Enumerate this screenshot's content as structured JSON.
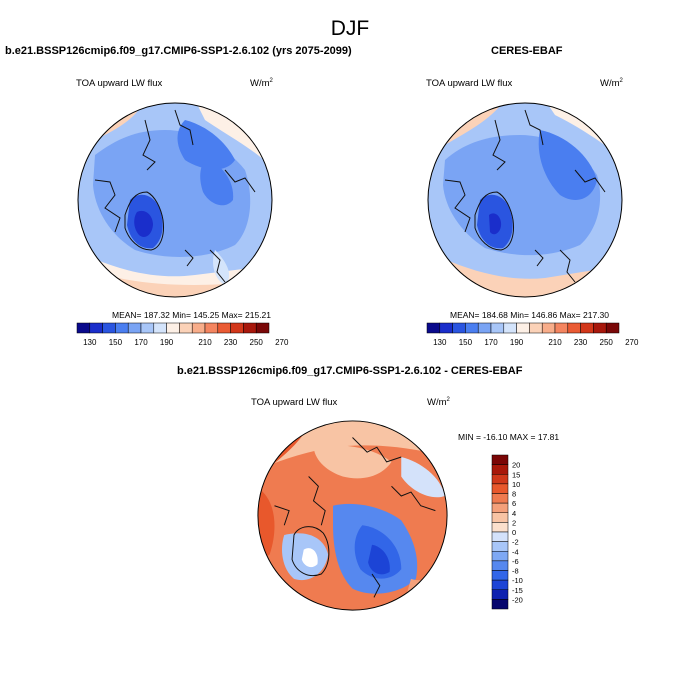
{
  "main_title": "DJF",
  "panels": [
    {
      "title": "b.e21.BSSP126cmip6.f09_g17.CMIP6-SSP1-2.6.102 (yrs 2075-2099)",
      "variable": "TOA upward LW flux",
      "units": "W/m",
      "units_sup": "2",
      "stats": "MEAN= 187.32  Min= 145.25  Max= 215.21",
      "colorbar_labels": [
        "130",
        "150",
        "170",
        "190",
        "210",
        "230",
        "250",
        "270"
      ]
    },
    {
      "title": "CERES-EBAF",
      "variable": "TOA upward LW flux",
      "units": "W/m",
      "units_sup": "2",
      "stats": "MEAN= 184.68  Min= 146.86  Max= 217.30",
      "colorbar_labels": [
        "130",
        "150",
        "170",
        "190",
        "210",
        "230",
        "250",
        "270"
      ]
    },
    {
      "title": "b.e21.BSSP126cmip6.f09_g17.CMIP6-SSP1-2.6.102 - CERES-EBAF",
      "variable": "TOA upward LW flux",
      "units": "W/m",
      "units_sup": "2",
      "stats": "MIN = -16.10 MAX =  17.81",
      "colorbar_labels": [
        "20",
        "15",
        "10",
        "8",
        "6",
        "4",
        "2",
        "0",
        "-2",
        "-4",
        "-6",
        "-8",
        "-10",
        "-15",
        "-20"
      ]
    }
  ],
  "colors": {
    "abs_scale": [
      "#0a0a8c",
      "#1a2ecb",
      "#2a55e0",
      "#4a7ef0",
      "#7aa4f4",
      "#a8c6f8",
      "#d4e4fb",
      "#fdf0e6",
      "#fbd2b8",
      "#f8ad8a",
      "#f48560",
      "#ea5b34",
      "#d2371a",
      "#a8180c",
      "#7a0808"
    ],
    "diff_scale": [
      "#06066e",
      "#0e22b0",
      "#1c44d6",
      "#3266e8",
      "#5688ef",
      "#7ea8f4",
      "#a8c6f8",
      "#d4e2fa",
      "#fbe0cc",
      "#f8c4a4",
      "#f4a07a",
      "#ef7b50",
      "#e8582c",
      "#d0381a",
      "#a8180a",
      "#7a0606"
    ]
  }
}
